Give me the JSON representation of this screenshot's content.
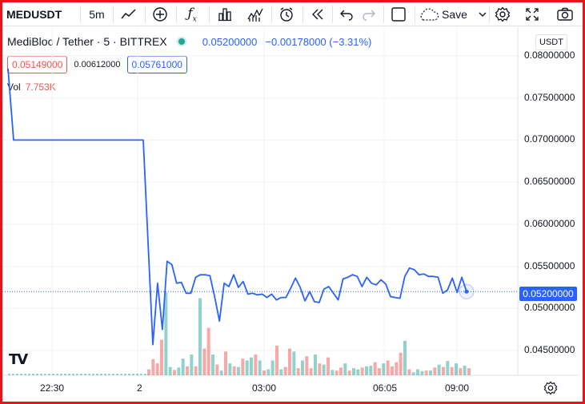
{
  "toolbar": {
    "symbol": "MEDUSDT",
    "interval": "5m",
    "save_label": "Save"
  },
  "legend": {
    "title": "MediBloc / Tether · 5 · BITTREX",
    "last_price": "0.05200000",
    "change": "−0.00178000 (−3.31%)"
  },
  "indicators": {
    "bid": "0.05149000",
    "spread": "0.00612000",
    "ask": "0.05761000"
  },
  "volume": {
    "label": "Vol",
    "value": "7.753K"
  },
  "price_axis": {
    "currency": "USDT",
    "labels": [
      "0.08000000",
      "0.07500000",
      "0.07000000",
      "0.06500000",
      "0.06000000",
      "0.05500000",
      "0.05000000",
      "0.04500000"
    ],
    "current_price_tag": "0.05200000"
  },
  "time_axis": {
    "labels": [
      "22:30",
      "2",
      "03:00",
      "06:05",
      "09:00"
    ]
  },
  "colors": {
    "line": "#2962ff",
    "up_volume": "#26a69a",
    "down_volume": "#ef5350",
    "frame": "#e4151b"
  },
  "icons": [
    "indicator-icon",
    "add-icon",
    "function-icon",
    "bar-chart-icon",
    "candles-icon",
    "alarm-icon",
    "rewind-icon",
    "undo-icon",
    "redo-icon",
    "layout-icon",
    "cloud-icon",
    "settings-icon",
    "fullscreen-icon",
    "camera-icon",
    "tradingview-logo"
  ],
  "chart_data": {
    "type": "line",
    "ylim": [
      0.043,
      0.0815
    ],
    "price_series": [
      0.0785,
      0.07,
      0.07,
      0.07,
      0.07,
      0.07,
      0.07,
      0.07,
      0.07,
      0.07,
      0.07,
      0.07,
      0.07,
      0.07,
      0.07,
      0.07,
      0.07,
      0.07,
      0.07,
      0.07,
      0.07,
      0.07,
      0.07,
      0.07,
      0.07,
      0.07,
      0.07,
      0.07,
      0.07,
      0.07,
      0.07,
      0.07,
      0.07,
      0.07,
      0.07,
      0.07,
      0.0457,
      0.053,
      0.0475,
      0.0556,
      0.0552,
      0.053,
      0.0531,
      0.0518,
      0.0518,
      0.0537,
      0.054,
      0.054,
      0.0539,
      0.0514,
      0.0485,
      0.053,
      0.0526,
      0.054,
      0.0525,
      0.0532,
      0.0517,
      0.0518,
      0.0516,
      0.0517,
      0.0513,
      0.0517,
      0.051,
      0.0513,
      0.0513,
      0.0524,
      0.0536,
      0.0525,
      0.0509,
      0.052,
      0.0508,
      0.0507,
      0.0523,
      0.0526,
      0.0518,
      0.051,
      0.0535,
      0.0537,
      0.054,
      0.0538,
      0.0526,
      0.0537,
      0.053,
      0.0528,
      0.0534,
      0.0529,
      0.0514,
      0.0513,
      0.0512,
      0.0538,
      0.0548,
      0.0546,
      0.054,
      0.0541,
      0.0538,
      0.0538,
      0.0537,
      0.0518,
      0.0522,
      0.0536,
      0.0519,
      0.0537,
      0.052
    ],
    "volume_series": [
      {
        "v": 10,
        "up": false
      },
      {
        "v": 27,
        "up": false
      },
      {
        "v": 20,
        "up": false
      },
      {
        "v": 60,
        "up": false
      },
      {
        "v": 140,
        "up": true
      },
      {
        "v": 14,
        "up": true
      },
      {
        "v": 9,
        "up": false
      },
      {
        "v": 13,
        "up": true
      },
      {
        "v": 28,
        "up": true
      },
      {
        "v": 15,
        "up": false
      },
      {
        "v": 35,
        "up": true
      },
      {
        "v": 15,
        "up": false
      },
      {
        "v": 130,
        "up": true
      },
      {
        "v": 45,
        "up": false
      },
      {
        "v": 80,
        "up": false
      },
      {
        "v": 35,
        "up": true
      },
      {
        "v": 18,
        "up": false
      },
      {
        "v": 8,
        "up": true
      },
      {
        "v": 40,
        "up": false
      },
      {
        "v": 20,
        "up": true
      },
      {
        "v": 15,
        "up": false
      },
      {
        "v": 14,
        "up": true
      },
      {
        "v": 28,
        "up": false
      },
      {
        "v": 25,
        "up": true
      },
      {
        "v": 30,
        "up": true
      },
      {
        "v": 35,
        "up": false
      },
      {
        "v": 25,
        "up": true
      },
      {
        "v": 8,
        "up": false
      },
      {
        "v": 10,
        "up": true
      },
      {
        "v": 25,
        "up": true
      },
      {
        "v": 50,
        "up": false
      },
      {
        "v": 10,
        "up": true
      },
      {
        "v": 14,
        "up": false
      },
      {
        "v": 45,
        "up": false
      },
      {
        "v": 40,
        "up": true
      },
      {
        "v": 12,
        "up": false
      },
      {
        "v": 25,
        "up": true
      },
      {
        "v": 32,
        "up": false
      },
      {
        "v": 12,
        "up": false
      },
      {
        "v": 35,
        "up": true
      },
      {
        "v": 20,
        "up": false
      },
      {
        "v": 18,
        "up": true
      },
      {
        "v": 30,
        "up": false
      },
      {
        "v": 9,
        "up": true
      },
      {
        "v": 8,
        "up": false
      },
      {
        "v": 13,
        "up": false
      },
      {
        "v": 20,
        "up": true
      },
      {
        "v": 8,
        "up": false
      },
      {
        "v": 12,
        "up": true
      },
      {
        "v": 10,
        "up": true
      },
      {
        "v": 13,
        "up": false
      },
      {
        "v": 15,
        "up": true
      },
      {
        "v": 16,
        "up": true
      },
      {
        "v": 22,
        "up": false
      },
      {
        "v": 12,
        "up": false
      },
      {
        "v": 20,
        "up": true
      },
      {
        "v": 25,
        "up": false
      },
      {
        "v": 15,
        "up": false
      },
      {
        "v": 22,
        "up": false
      },
      {
        "v": 38,
        "up": false
      },
      {
        "v": 58,
        "up": true
      },
      {
        "v": 10,
        "up": false
      },
      {
        "v": 5,
        "up": true
      },
      {
        "v": 10,
        "up": true
      },
      {
        "v": 7,
        "up": true
      },
      {
        "v": 8,
        "up": false
      },
      {
        "v": 8,
        "up": true
      },
      {
        "v": 13,
        "up": false
      },
      {
        "v": 18,
        "up": true
      },
      {
        "v": 14,
        "up": false
      },
      {
        "v": 24,
        "up": true
      },
      {
        "v": 14,
        "up": false
      },
      {
        "v": 20,
        "up": true
      },
      {
        "v": 12,
        "up": false
      },
      {
        "v": 16,
        "up": true
      },
      {
        "v": 12,
        "up": false
      }
    ]
  }
}
